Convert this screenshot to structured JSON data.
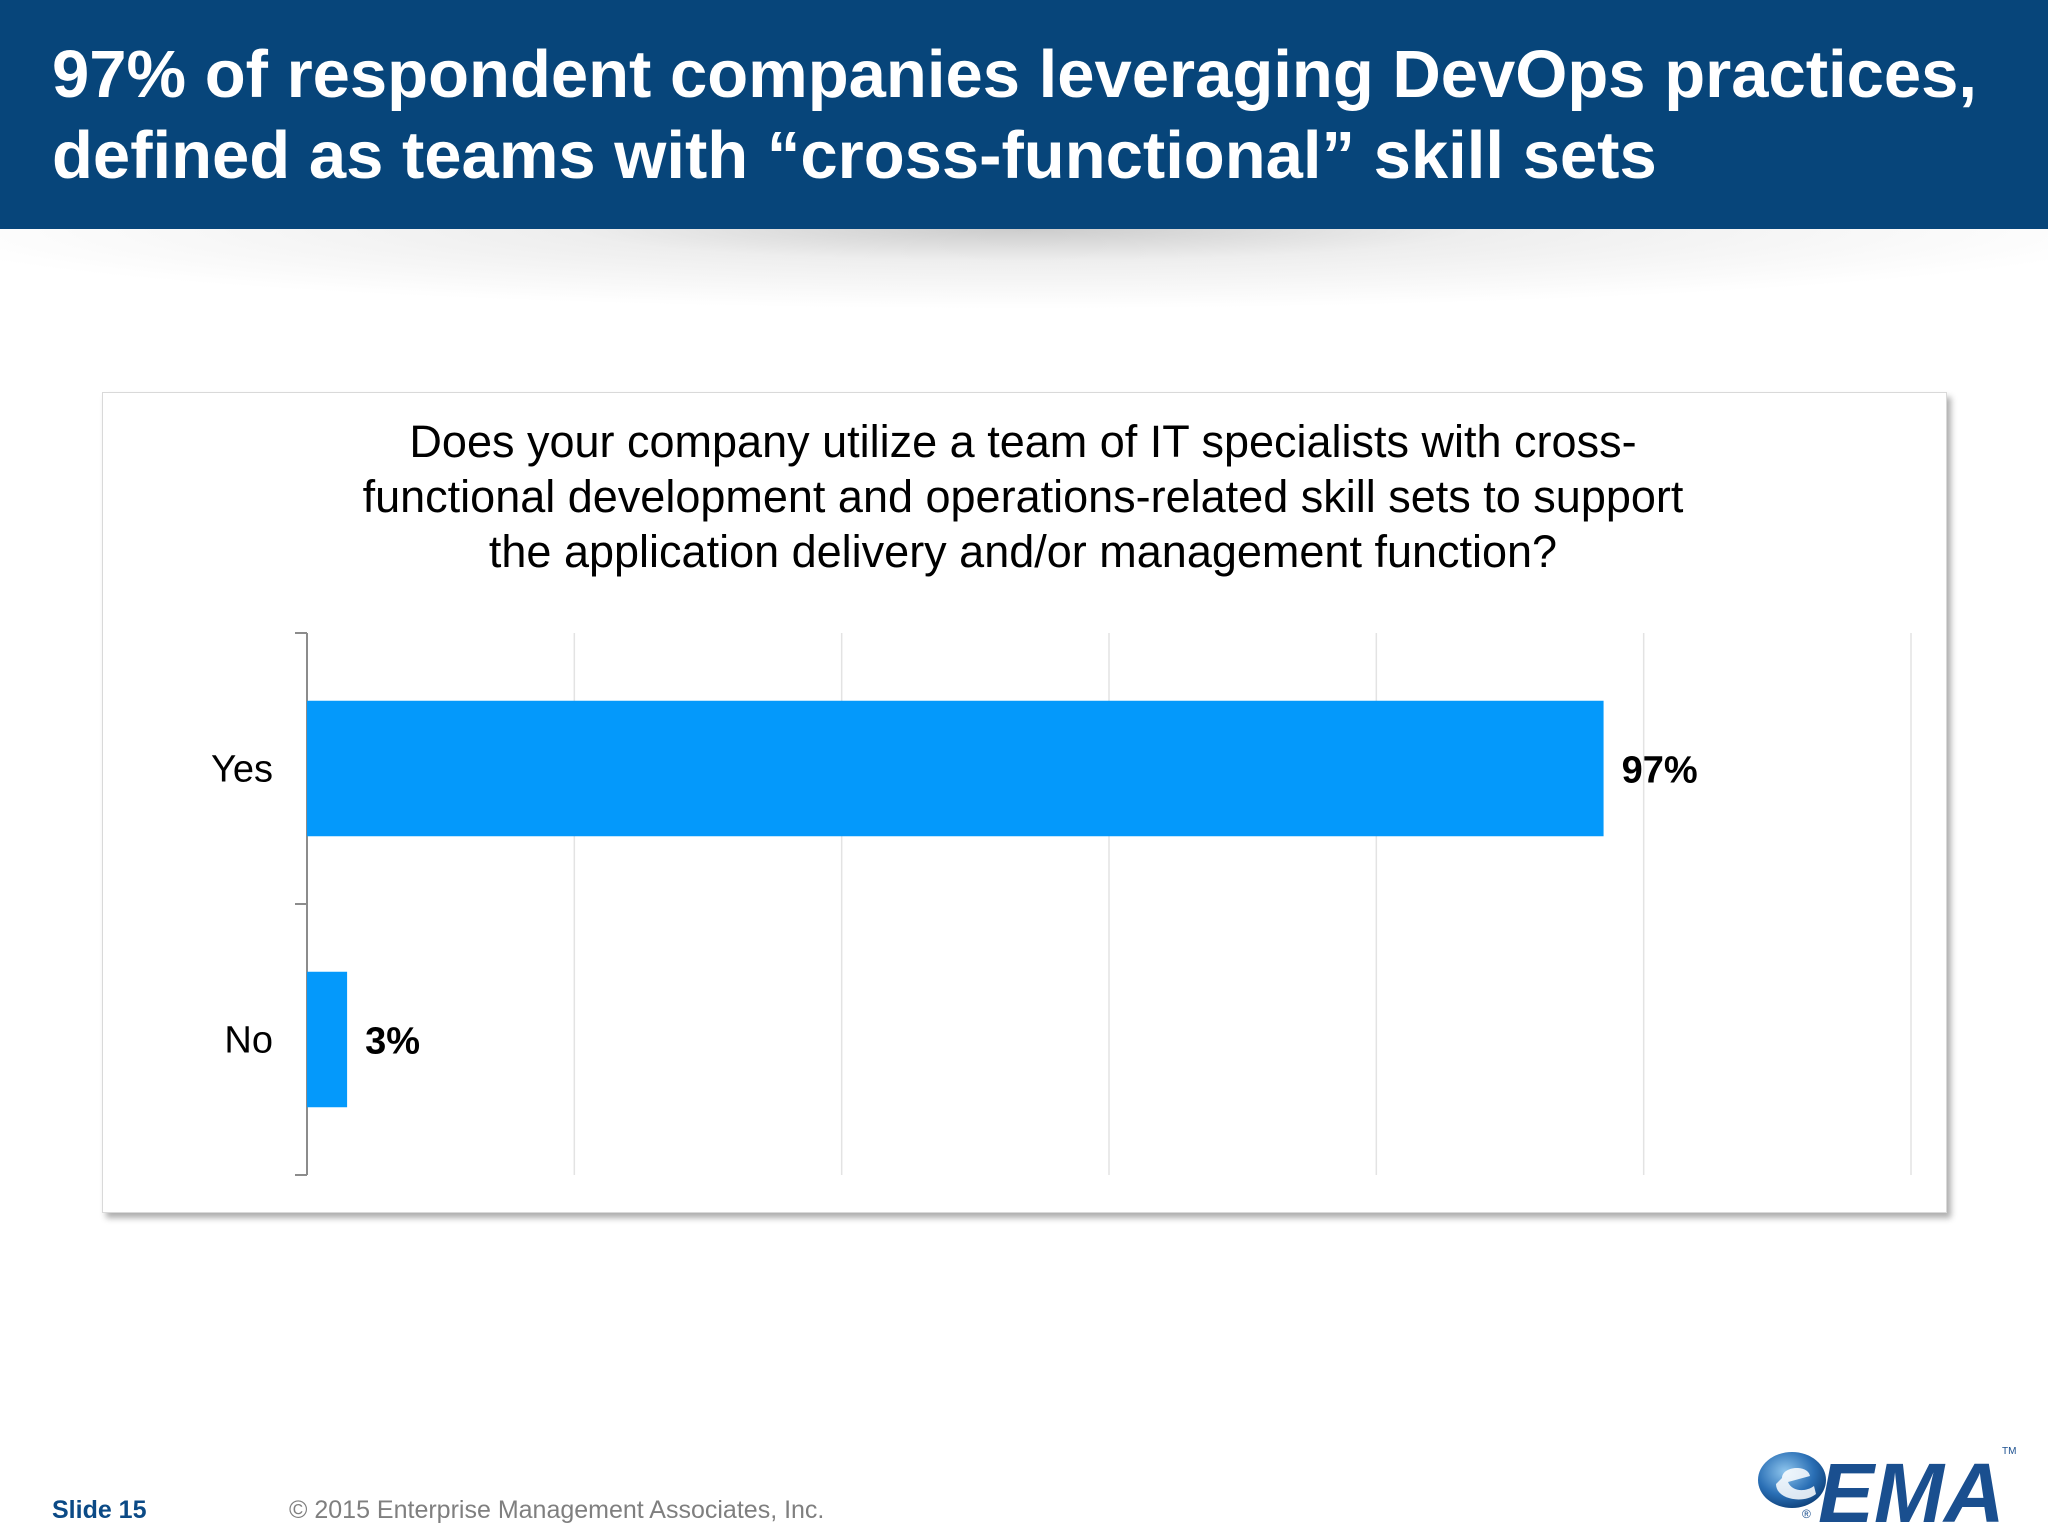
{
  "slide": {
    "title": "97% of respondent companies leveraging DevOps practices,\ndefined as teams with “cross-functional” skill sets",
    "footer_slide": "Slide 15",
    "footer_copyright": "© 2015 Enterprise Management Associates, Inc.",
    "logo_text": "EMA",
    "logo_registered": "®",
    "logo_trademark": "TM",
    "colors": {
      "header": "#07457a",
      "bar": "#0499fb",
      "logo": "#1a4f8f"
    }
  },
  "chart_data": {
    "type": "bar",
    "orientation": "horizontal",
    "title": "Does your company utilize a team of IT specialists with cross-\nfunctional development and operations-related skill sets to support\nthe application delivery and/or management function?",
    "categories": [
      "Yes",
      "No"
    ],
    "values": [
      97,
      3
    ],
    "data_labels": [
      "97%",
      "3%"
    ],
    "xlim": [
      0,
      120
    ],
    "grid": true,
    "legend": "none"
  }
}
